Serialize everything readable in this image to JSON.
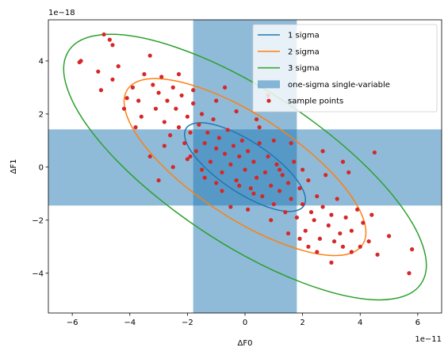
{
  "chart_data": {
    "type": "scatter",
    "x_label": "ΔF0",
    "y_label": "ΔF1",
    "x_offset_label": "1e−11",
    "y_offset_label": "1e−18",
    "xlim": [
      -6.83,
      6.83
    ],
    "ylim": [
      -5.5,
      5.55
    ],
    "xticks": [
      {
        "value": -6,
        "label": "−6"
      },
      {
        "value": -4,
        "label": "−4"
      },
      {
        "value": -2,
        "label": "−2"
      },
      0,
      2,
      4,
      6
    ],
    "yticks": [
      {
        "value": -4,
        "label": "−4"
      },
      {
        "value": -2,
        "label": "−2"
      },
      0,
      2,
      4
    ],
    "legend": "upper right",
    "series": [
      {
        "name": "1 sigma",
        "type": "line",
        "color": "#1f77b4",
        "x": [
          2.1,
          1.94,
          1.48,
          0.8,
          0,
          -0.8,
          -1.48,
          -1.94,
          -2.1,
          -1.94,
          -1.48,
          -0.8,
          0,
          0.8,
          1.48,
          1.94,
          2.1
        ],
        "y": [
          -1.23,
          -0.71,
          -0.08,
          0.56,
          1.12,
          1.51,
          1.67,
          1.57,
          1.23,
          0.71,
          0.08,
          -0.56,
          -1.12,
          -1.51,
          -1.67,
          -1.57,
          -1.23
        ]
      },
      {
        "name": "2 sigma",
        "type": "line",
        "color": "#ff7f0e",
        "x": [
          4.2,
          3.88,
          2.97,
          1.61,
          0,
          -1.61,
          -2.97,
          -3.88,
          -4.2,
          -3.88,
          -2.97,
          -1.61,
          0,
          1.61,
          2.97,
          3.88,
          4.2
        ],
        "y": [
          -2.47,
          -1.42,
          -0.16,
          1.12,
          2.24,
          3.01,
          3.33,
          3.14,
          2.47,
          1.42,
          0.16,
          -1.12,
          -2.24,
          -3.01,
          -3.33,
          -3.14,
          -2.47
        ]
      },
      {
        "name": "3 sigma",
        "type": "line",
        "color": "#2ca02c",
        "x": [
          6.3,
          5.82,
          4.45,
          2.41,
          0,
          -2.41,
          -4.45,
          -5.82,
          -6.3,
          -5.82,
          -4.45,
          -2.41,
          0,
          2.41,
          4.45,
          5.82,
          6.3
        ],
        "y": [
          -3.7,
          -2.13,
          -0.24,
          1.68,
          3.36,
          4.52,
          5.0,
          4.71,
          3.7,
          2.13,
          0.24,
          -1.68,
          -3.36,
          -4.52,
          -5.0,
          -4.71,
          -3.7
        ]
      },
      {
        "name": "one-sigma single-variable",
        "type": "span",
        "color": "#1f77b4",
        "alpha": 0.5,
        "x": [
          -1.8,
          1.8
        ],
        "y": [
          -1.45,
          1.42
        ]
      },
      {
        "name": "sample points",
        "type": "scatter",
        "color": "#d62728",
        "x": [
          -4.9,
          -4.7,
          -5.7,
          -5.75,
          -3.3,
          -4.4,
          -3.9,
          -4.1,
          -4.6,
          -5.0,
          -4.2,
          -3.7,
          -3.5,
          -3.2,
          -3.0,
          -3.6,
          -3.1,
          -2.9,
          -2.7,
          -2.5,
          -2.8,
          -2.6,
          -2.4,
          -2.3,
          -2.2,
          -2.1,
          -2.0,
          -1.9,
          -1.8,
          -1.7,
          -1.6,
          -1.5,
          -1.4,
          -1.3,
          -1.2,
          -1.1,
          -1.0,
          -0.9,
          -0.8,
          -0.7,
          -0.6,
          -0.5,
          -0.4,
          -0.3,
          -0.2,
          -0.1,
          0.0,
          0.1,
          0.2,
          0.3,
          0.4,
          0.5,
          0.6,
          0.7,
          0.8,
          0.9,
          1.0,
          1.1,
          1.2,
          1.3,
          1.4,
          1.5,
          1.6,
          1.7,
          1.8,
          1.9,
          2.0,
          2.1,
          2.2,
          2.3,
          2.4,
          2.5,
          2.6,
          2.7,
          2.8,
          2.9,
          3.0,
          3.1,
          3.2,
          3.3,
          3.4,
          3.5,
          3.6,
          3.7,
          3.9,
          4.1,
          4.3,
          4.5,
          4.4,
          4.6,
          5.0,
          5.8,
          5.7,
          3.0,
          2.5,
          -0.5,
          -1.0,
          -1.5,
          -2.0,
          0.5,
          1.0,
          -3.3,
          -3.0,
          -2.5,
          -1.8,
          -2.3,
          -1.0,
          -0.3,
          0.4,
          1.6,
          2.7,
          3.4,
          -4.6,
          -5.1,
          -0.8,
          0.1,
          0.9,
          1.5,
          2.2,
          -1.4,
          -2.8,
          -3.8,
          -0.7,
          0.8,
          -1.9,
          0.3,
          1.2,
          -0.2,
          2.0,
          3.7,
          4.0,
          1.9
        ],
        "y": [
          5.0,
          4.8,
          4.0,
          3.95,
          4.2,
          3.8,
          3.0,
          2.6,
          3.3,
          2.9,
          2.2,
          2.5,
          3.5,
          3.1,
          2.8,
          1.9,
          2.2,
          3.4,
          2.5,
          3.0,
          1.7,
          1.2,
          2.2,
          1.5,
          2.7,
          0.9,
          1.9,
          1.3,
          2.4,
          0.6,
          1.6,
          2.0,
          0.9,
          1.3,
          0.2,
          1.8,
          0.7,
          1.1,
          -0.2,
          0.5,
          1.4,
          0.1,
          0.8,
          -0.5,
          0.4,
          1.0,
          -0.1,
          0.6,
          -0.8,
          0.2,
          -0.4,
          0.9,
          -1.1,
          -0.2,
          0.4,
          -0.7,
          -1.4,
          0.1,
          -0.9,
          -0.3,
          -1.7,
          -0.6,
          -1.2,
          0.2,
          -1.9,
          -0.8,
          -1.4,
          -2.4,
          -0.5,
          -1.7,
          -2.0,
          -1.1,
          -2.7,
          -1.5,
          -0.3,
          -2.2,
          -1.8,
          -2.8,
          -1.2,
          -2.5,
          -3.0,
          -1.9,
          -0.2,
          -2.4,
          -1.6,
          -2.1,
          -2.8,
          0.55,
          -1.8,
          -3.3,
          -2.6,
          -3.1,
          -4.0,
          -3.6,
          -3.2,
          -1.5,
          -0.6,
          -0.1,
          0.3,
          1.5,
          1.0,
          0.4,
          -0.5,
          0.0,
          2.9,
          3.5,
          2.5,
          2.1,
          1.8,
          0.9,
          0.6,
          0.2,
          4.6,
          3.6,
          -0.9,
          -1.6,
          -2.0,
          -2.5,
          -3.0,
          -0.4,
          0.8,
          1.5,
          3.0,
          2.7,
          0.4,
          -1.0,
          -0.1,
          -0.7,
          -0.1,
          -3.2,
          -3.0,
          -2.7
        ]
      }
    ]
  }
}
